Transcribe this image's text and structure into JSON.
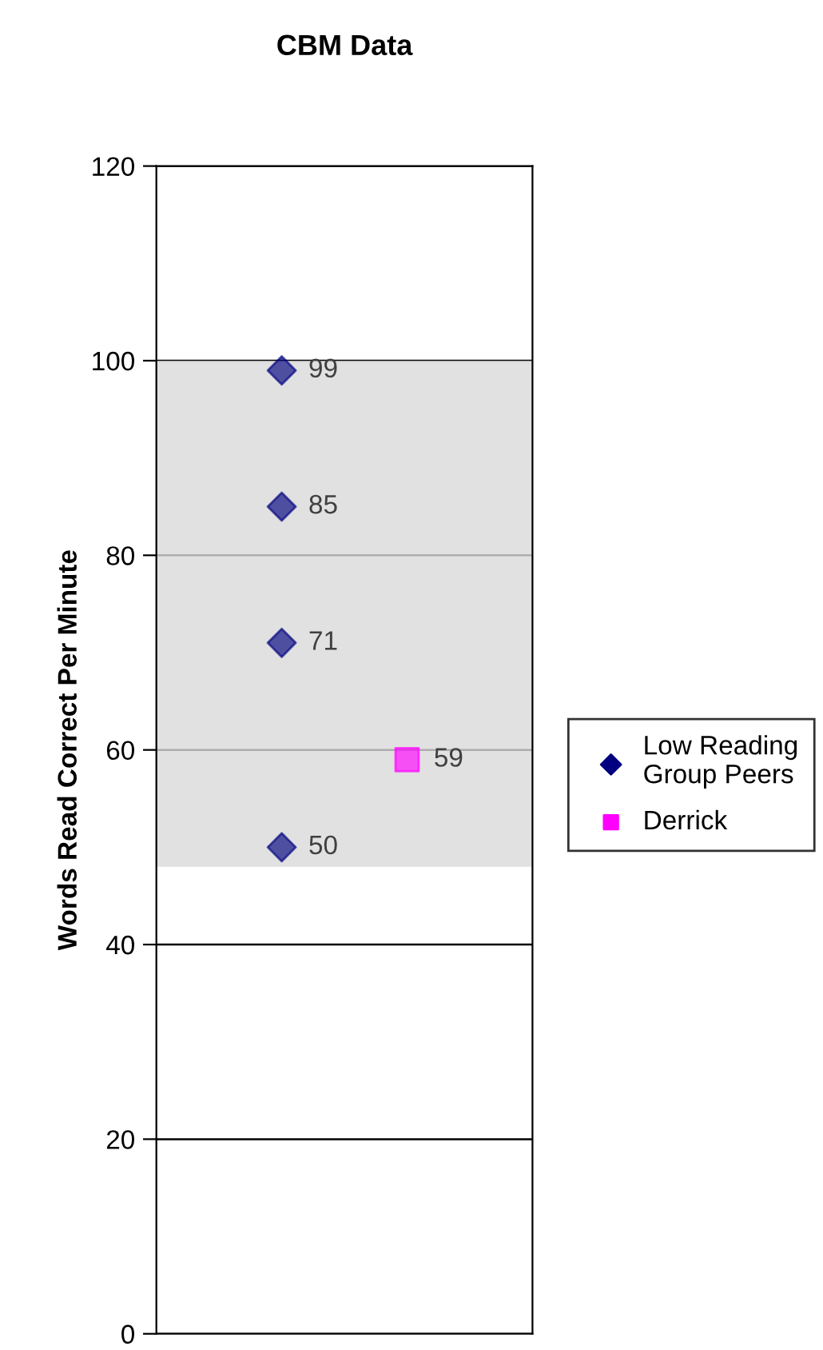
{
  "chart_data": {
    "type": "scatter",
    "title": "CBM Data",
    "ylabel": "Words Read Correct Per Minute",
    "categories": [
      null,
      null
    ],
    "ylim": [
      0,
      120
    ],
    "yticks": [
      0,
      20,
      40,
      60,
      80,
      100,
      120
    ],
    "grid": "y",
    "legend": "right",
    "data_labels": true,
    "bands": [
      {
        "axis": "y",
        "from": 48,
        "to": 100,
        "color": "#d9d9d9"
      }
    ],
    "series": [
      {
        "name": "Low Reading Group Peers",
        "color": "#000080",
        "marker": "diamond",
        "values": [
          99,
          null
        ]
      },
      {
        "color": "#000080",
        "marker": "diamond",
        "values": [
          85,
          null
        ]
      },
      {
        "color": "#000080",
        "marker": "diamond",
        "values": [
          71,
          null
        ]
      },
      {
        "color": "#000080",
        "marker": "diamond",
        "values": [
          50,
          null
        ]
      },
      {
        "name": "Derrick",
        "color": "#ff00ff",
        "marker": "square",
        "values": [
          null,
          59
        ]
      }
    ]
  }
}
